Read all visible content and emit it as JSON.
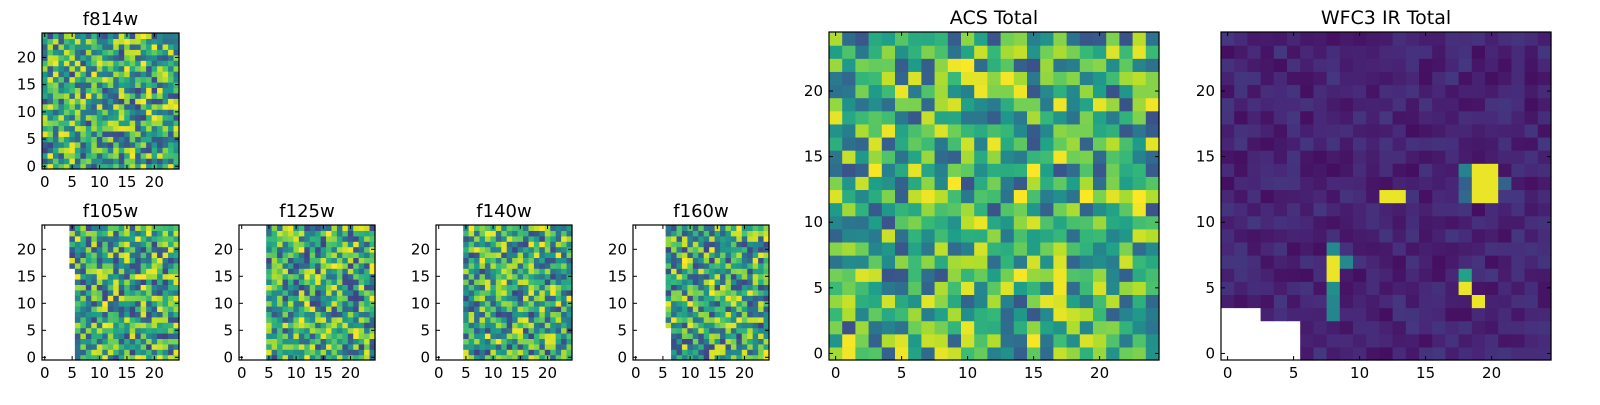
{
  "figure": {
    "colormap": "viridis",
    "colormap_stops": [
      "#440154",
      "#482878",
      "#3e4989",
      "#31688e",
      "#26828e",
      "#1f9e89",
      "#35b779",
      "#6ece58",
      "#b5de2b",
      "#fde725"
    ],
    "background": "#ffffff"
  },
  "chart_data": [
    {
      "id": "f814w",
      "type": "heatmap",
      "title": "f814w",
      "grid": 25,
      "xticks": [
        "0",
        "5",
        "10",
        "15",
        "20"
      ],
      "yticks": [
        "0",
        "5",
        "10",
        "15",
        "20"
      ],
      "xlim": [
        0,
        24
      ],
      "ylim": [
        0,
        24
      ],
      "grid_lines": false,
      "legend": "none",
      "masked_columns": 0,
      "note": ""
    },
    {
      "id": "f105w",
      "type": "heatmap",
      "title": "f105w",
      "grid": 25,
      "xticks": [
        "0",
        "5",
        "10",
        "15",
        "20"
      ],
      "yticks": [
        "0",
        "5",
        "10",
        "15",
        "20"
      ],
      "xlim": [
        0,
        24
      ],
      "ylim": [
        0,
        24
      ],
      "grid_lines": false,
      "legend": "none",
      "masked_columns": 5
    },
    {
      "id": "f125w",
      "type": "heatmap",
      "title": "f125w",
      "grid": 25,
      "xticks": [
        "0",
        "5",
        "10",
        "15",
        "20"
      ],
      "yticks": [
        "0",
        "5",
        "10",
        "15",
        "20"
      ],
      "xlim": [
        0,
        24
      ],
      "ylim": [
        0,
        24
      ],
      "grid_lines": false,
      "legend": "none",
      "masked_columns": 5
    },
    {
      "id": "f140w",
      "type": "heatmap",
      "title": "f140w",
      "grid": 25,
      "xticks": [
        "0",
        "5",
        "10",
        "15",
        "20"
      ],
      "yticks": [
        "0",
        "5",
        "10",
        "15",
        "20"
      ],
      "xlim": [
        0,
        24
      ],
      "ylim": [
        0,
        24
      ],
      "grid_lines": false,
      "legend": "none",
      "masked_columns": 5
    },
    {
      "id": "f160w",
      "type": "heatmap",
      "title": "f160w",
      "grid": 25,
      "xticks": [
        "0",
        "5",
        "10",
        "15",
        "20"
      ],
      "yticks": [
        "0",
        "5",
        "10",
        "15",
        "20"
      ],
      "xlim": [
        0,
        24
      ],
      "ylim": [
        0,
        24
      ],
      "grid_lines": false,
      "legend": "none",
      "masked_columns": 6
    },
    {
      "id": "acs-total",
      "type": "heatmap",
      "title": "ACS Total",
      "grid": 25,
      "xticks": [
        "0",
        "5",
        "10",
        "15",
        "20"
      ],
      "yticks": [
        "0",
        "5",
        "10",
        "15",
        "20"
      ],
      "xlim": [
        0,
        24
      ],
      "ylim": [
        0,
        24
      ],
      "grid_lines": false,
      "legend": "none",
      "masked_columns": 0
    },
    {
      "id": "wfc3-ir-total",
      "type": "heatmap",
      "title": "WFC3 IR Total",
      "grid": 25,
      "xticks": [
        "0",
        "5",
        "10",
        "15",
        "20"
      ],
      "yticks": [
        "0",
        "5",
        "10",
        "15",
        "20"
      ],
      "xlim": [
        0,
        24
      ],
      "ylim": [
        0,
        24
      ],
      "grid_lines": false,
      "legend": "none",
      "masked_region": "lower-left corner",
      "bright_pixels": [
        {
          "x": 12,
          "y": 12
        },
        {
          "x": 13,
          "y": 12
        },
        {
          "x": 19,
          "y": 12
        },
        {
          "x": 20,
          "y": 12
        },
        {
          "x": 19,
          "y": 13
        },
        {
          "x": 20,
          "y": 13
        },
        {
          "x": 19,
          "y": 14
        },
        {
          "x": 20,
          "y": 14
        },
        {
          "x": 8,
          "y": 6
        },
        {
          "x": 8,
          "y": 7
        },
        {
          "x": 18,
          "y": 5
        },
        {
          "x": 19,
          "y": 4
        }
      ]
    }
  ]
}
